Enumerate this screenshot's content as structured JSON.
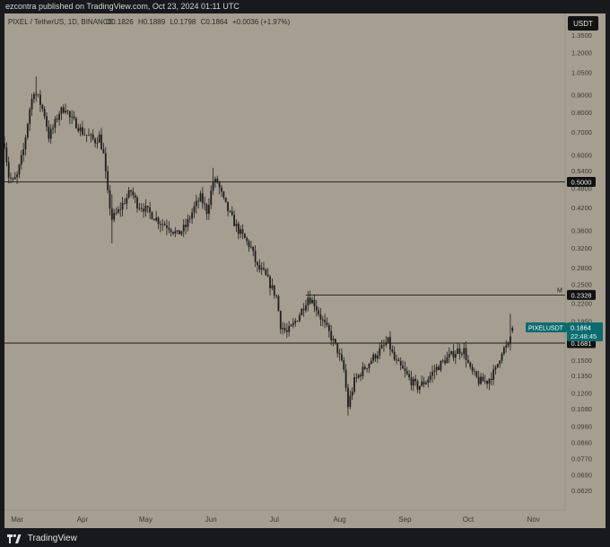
{
  "header": {
    "publisher": "ezcontra published on TradingView.com, Oct 23, 2024 01:11 UTC"
  },
  "footer": {
    "brand": "TradingView",
    "logo_icon": "tradingview-logo-icon"
  },
  "colors": {
    "background": "#a59e91",
    "candle": "#1e1e1e",
    "price_label": "#0b6b6e",
    "level_label": "#111111"
  },
  "chart_data": {
    "type": "candlestick",
    "symbol_info": {
      "name": "PIXEL / TetherUS, 1D, BINANCE",
      "o_label": "O",
      "o": "0.1826",
      "h_label": "H",
      "h": "0.1889",
      "l_label": "L",
      "l": "0.1798",
      "c_label": "C",
      "c": "0.1864",
      "change": "+0.0036 (+1.97%)"
    },
    "currency_button": "USDT",
    "y_scale": "log",
    "ylim": [
      0.056,
      1.4
    ],
    "xlim": [
      "2024-02-24",
      "2024-11-16"
    ],
    "y_ticks": [
      "1.3500",
      "1.2000",
      "1.0500",
      "0.9000",
      "0.8000",
      "0.7000",
      "0.6000",
      "0.5400",
      "0.4800",
      "0.4200",
      "0.3600",
      "0.3200",
      "0.2800",
      "0.2500",
      "0.2200",
      "0.1950",
      "0.1750",
      "0.1500",
      "0.1350",
      "0.1200",
      "0.1080",
      "0.0960",
      "0.0860",
      "0.0770",
      "0.0690",
      "0.0620"
    ],
    "x_ticks": [
      {
        "label": "Mar",
        "date": "2024-03-01"
      },
      {
        "label": "Apr",
        "date": "2024-04-01"
      },
      {
        "label": "May",
        "date": "2024-05-01"
      },
      {
        "label": "Jun",
        "date": "2024-06-01"
      },
      {
        "label": "Jul",
        "date": "2024-07-01"
      },
      {
        "label": "Aug",
        "date": "2024-08-01"
      },
      {
        "label": "Sep",
        "date": "2024-09-01"
      },
      {
        "label": "Oct",
        "date": "2024-10-01"
      },
      {
        "label": "Nov",
        "date": "2024-11-01"
      }
    ],
    "horizontal_levels": [
      {
        "value": 0.5,
        "label": "0.5000",
        "start": "2024-02-24"
      },
      {
        "value": 0.2328,
        "label": "0.2328",
        "start": "2024-07-16",
        "marker": "M"
      },
      {
        "value": 0.1681,
        "label": "0.1681",
        "start": "2024-02-24"
      }
    ],
    "last_price": {
      "symbol": "PIXELUSDT",
      "value": 0.1864,
      "value_label": "0.1864",
      "countdown": "22:48:45"
    },
    "grid": false,
    "legend": "none",
    "anchors": [
      [
        "2024-02-24",
        0.65
      ],
      [
        "2024-02-26",
        0.52
      ],
      [
        "2024-02-28",
        0.5
      ],
      [
        "2024-03-01",
        0.52
      ],
      [
        "2024-03-04",
        0.62
      ],
      [
        "2024-03-07",
        0.82
      ],
      [
        "2024-03-09",
        0.93
      ],
      [
        "2024-03-11",
        0.88
      ],
      [
        "2024-03-14",
        0.79
      ],
      [
        "2024-03-16",
        0.68
      ],
      [
        "2024-03-18",
        0.72
      ],
      [
        "2024-03-21",
        0.8
      ],
      [
        "2024-03-24",
        0.83
      ],
      [
        "2024-03-26",
        0.77
      ],
      [
        "2024-03-29",
        0.74
      ],
      [
        "2024-04-01",
        0.7
      ],
      [
        "2024-04-04",
        0.68
      ],
      [
        "2024-04-07",
        0.66
      ],
      [
        "2024-04-09",
        0.68
      ],
      [
        "2024-04-11",
        0.6
      ],
      [
        "2024-04-13",
        0.46
      ],
      [
        "2024-04-15",
        0.39
      ],
      [
        "2024-04-18",
        0.41
      ],
      [
        "2024-04-21",
        0.44
      ],
      [
        "2024-04-24",
        0.47
      ],
      [
        "2024-04-27",
        0.43
      ],
      [
        "2024-04-30",
        0.42
      ],
      [
        "2024-05-04",
        0.4
      ],
      [
        "2024-05-08",
        0.38
      ],
      [
        "2024-05-12",
        0.37
      ],
      [
        "2024-05-16",
        0.35
      ],
      [
        "2024-05-20",
        0.37
      ],
      [
        "2024-05-24",
        0.42
      ],
      [
        "2024-05-27",
        0.45
      ],
      [
        "2024-05-30",
        0.41
      ],
      [
        "2024-06-02",
        0.5
      ],
      [
        "2024-06-04",
        0.5
      ],
      [
        "2024-06-07",
        0.44
      ],
      [
        "2024-06-10",
        0.4
      ],
      [
        "2024-06-14",
        0.36
      ],
      [
        "2024-06-17",
        0.34
      ],
      [
        "2024-06-20",
        0.32
      ],
      [
        "2024-06-23",
        0.28
      ],
      [
        "2024-06-26",
        0.27
      ],
      [
        "2024-06-29",
        0.25
      ],
      [
        "2024-07-02",
        0.23
      ],
      [
        "2024-07-04",
        0.19
      ],
      [
        "2024-07-07",
        0.18
      ],
      [
        "2024-07-10",
        0.19
      ],
      [
        "2024-07-14",
        0.21
      ],
      [
        "2024-07-17",
        0.23
      ],
      [
        "2024-07-20",
        0.22
      ],
      [
        "2024-07-23",
        0.2
      ],
      [
        "2024-07-27",
        0.18
      ],
      [
        "2024-07-31",
        0.16
      ],
      [
        "2024-08-03",
        0.14
      ],
      [
        "2024-08-05",
        0.11
      ],
      [
        "2024-08-08",
        0.13
      ],
      [
        "2024-08-12",
        0.14
      ],
      [
        "2024-08-16",
        0.15
      ],
      [
        "2024-08-20",
        0.16
      ],
      [
        "2024-08-24",
        0.17
      ],
      [
        "2024-08-27",
        0.15
      ],
      [
        "2024-08-31",
        0.14
      ],
      [
        "2024-09-04",
        0.13
      ],
      [
        "2024-09-07",
        0.125
      ],
      [
        "2024-09-11",
        0.13
      ],
      [
        "2024-09-15",
        0.14
      ],
      [
        "2024-09-20",
        0.15
      ],
      [
        "2024-09-26",
        0.16
      ],
      [
        "2024-09-29",
        0.16
      ],
      [
        "2024-10-02",
        0.14
      ],
      [
        "2024-10-06",
        0.13
      ],
      [
        "2024-10-10",
        0.13
      ],
      [
        "2024-10-14",
        0.14
      ],
      [
        "2024-10-17",
        0.16
      ],
      [
        "2024-10-20",
        0.165
      ],
      [
        "2024-10-22",
        0.186
      ]
    ]
  }
}
